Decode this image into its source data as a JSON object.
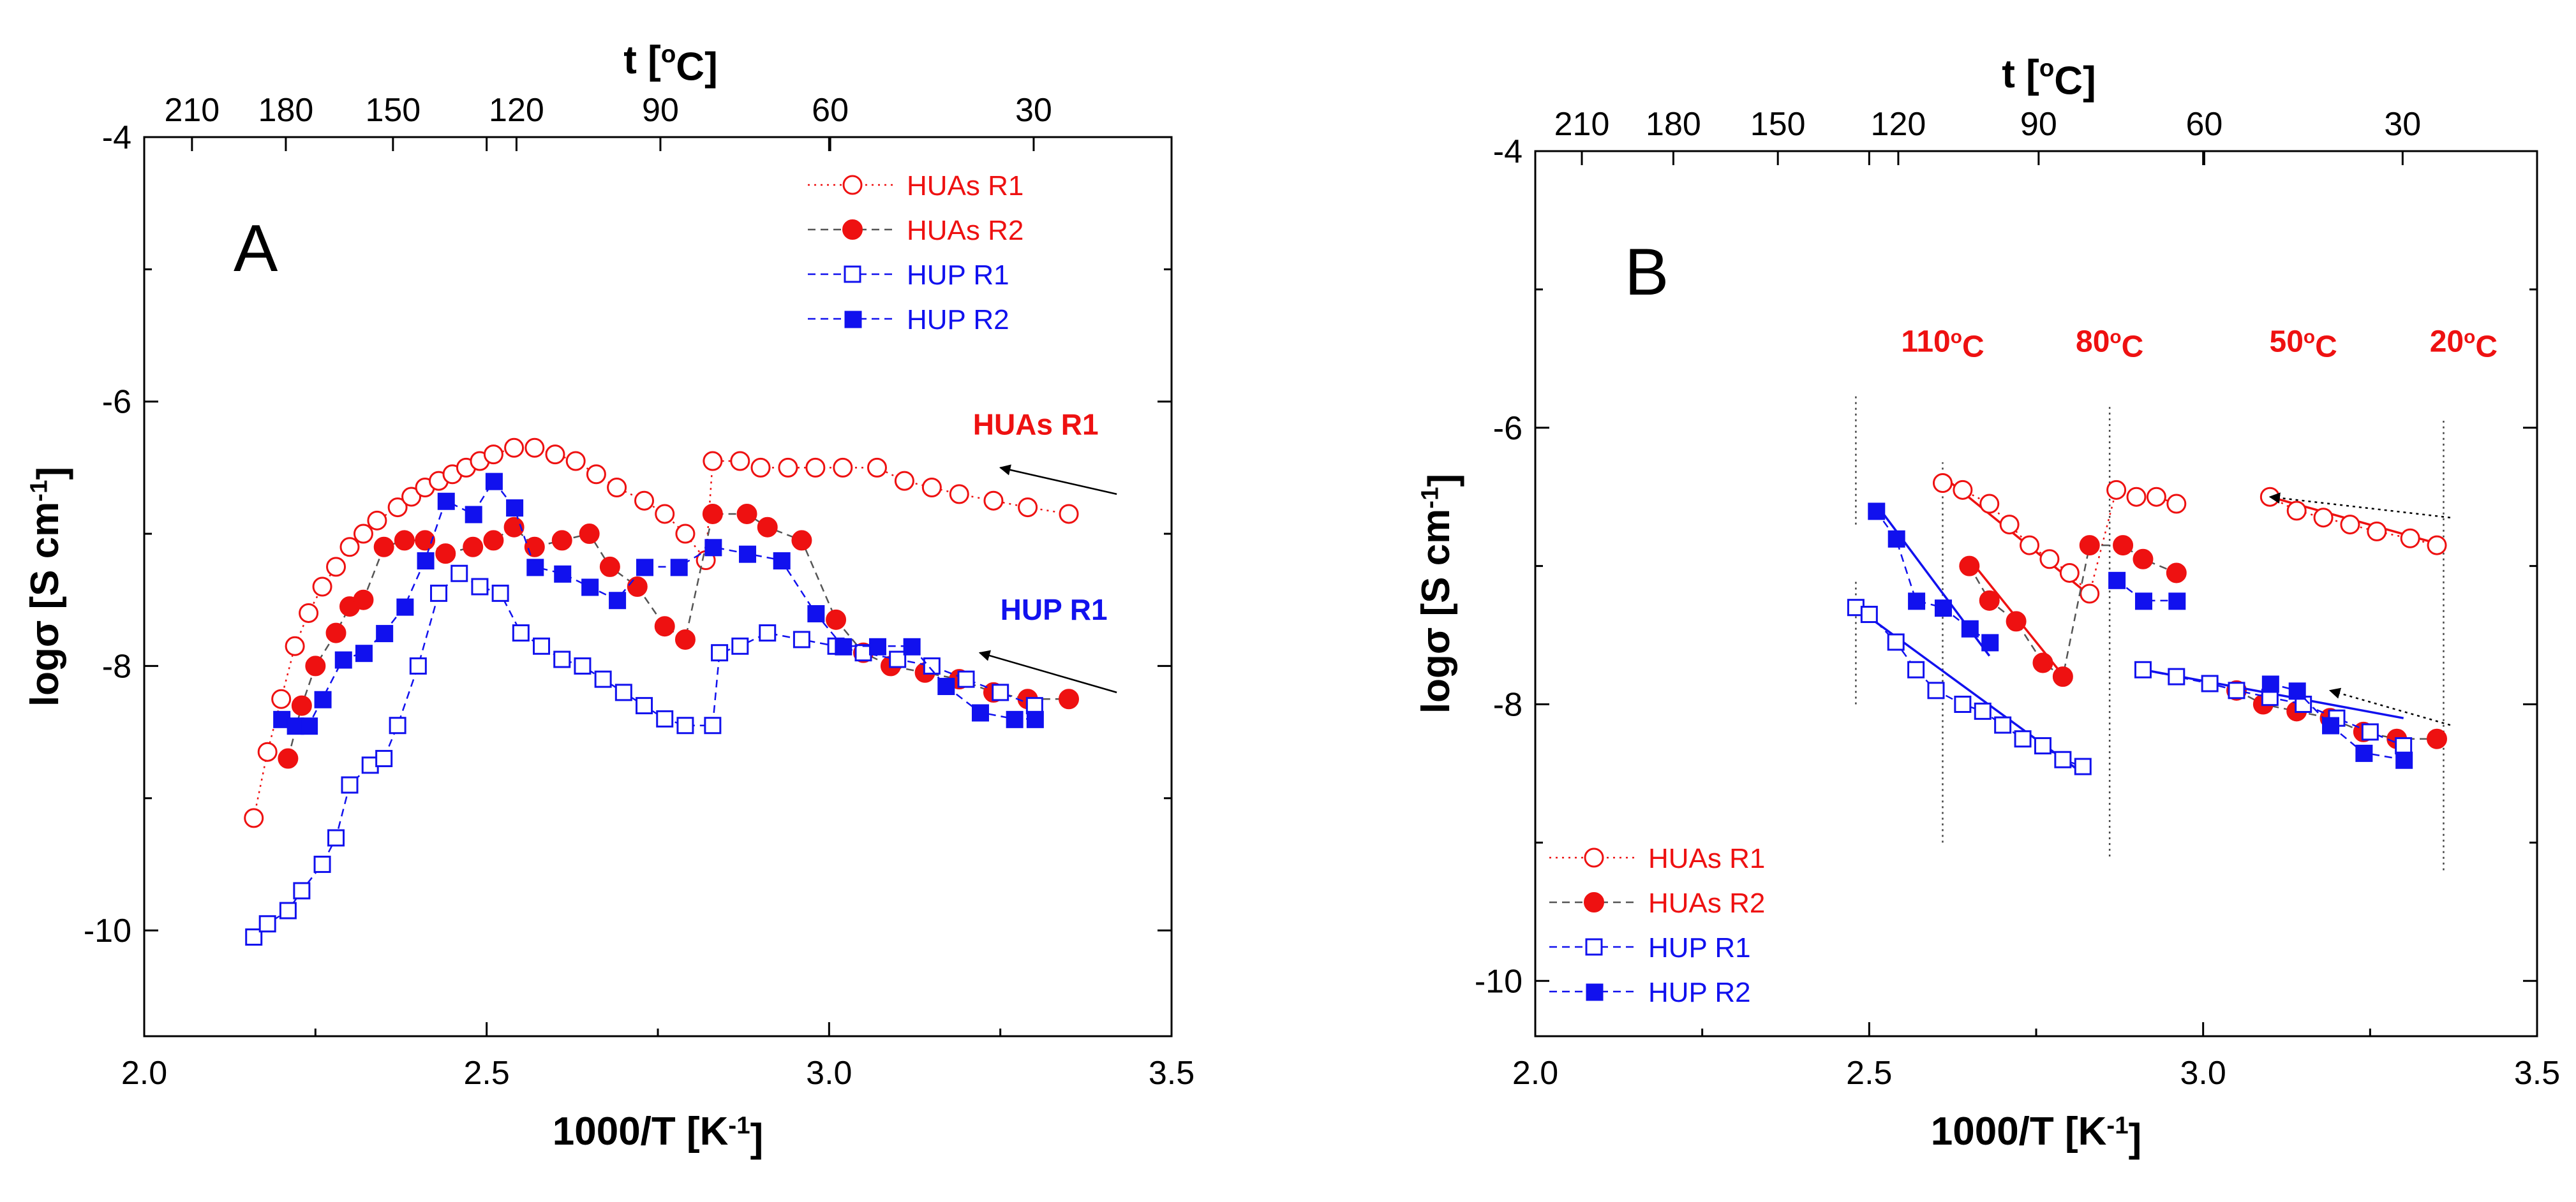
{
  "colors": {
    "red": "#ee1111",
    "blue": "#1111ee",
    "gray": "#555555",
    "black": "#000000"
  },
  "chart_data": [
    {
      "panel": "A",
      "type": "scatter",
      "xlabel": "1000/T [K",
      "xlabel_sup": "-1",
      "xlabel_end": "]",
      "ylabel": "logσ [S cm",
      "ylabel_sup": "-1",
      "ylabel_end": "]",
      "top_axis_label": "t [",
      "top_axis_label_sup": "o",
      "top_axis_label_end": "C]",
      "xlim": [
        2.0,
        3.5
      ],
      "ylim": [
        -10.8,
        -4.0
      ],
      "xticks": [
        2.0,
        2.5,
        3.0,
        3.5
      ],
      "xtick_labels": [
        "2.0",
        "2.5",
        "3.0",
        "3.5"
      ],
      "yticks": [
        -10,
        -8,
        -6,
        -4
      ],
      "ytick_labels": [
        "-10",
        "-8",
        "-6",
        "-4"
      ],
      "top_ticks": [
        210,
        180,
        150,
        120,
        90,
        60,
        30
      ],
      "top_tick_labels": [
        "210",
        "180",
        "150",
        "120",
        "90",
        "60",
        "30"
      ],
      "panel_letter": "A",
      "legend": {
        "position": "top-right",
        "entries": [
          "HUAs R1",
          "HUAs R2",
          "HUP R1",
          "HUP R2"
        ]
      },
      "series": [
        {
          "name": "HUAs R1",
          "color": "#ee1111",
          "marker": "open-circle",
          "line": "dotted",
          "x": [
            2.16,
            2.18,
            2.2,
            2.22,
            2.24,
            2.26,
            2.28,
            2.3,
            2.32,
            2.34,
            2.37,
            2.39,
            2.41,
            2.43,
            2.45,
            2.47,
            2.49,
            2.51,
            2.54,
            2.57,
            2.6,
            2.63,
            2.66,
            2.69,
            2.73,
            2.76,
            2.79,
            2.82,
            2.83,
            2.87,
            2.9,
            2.94,
            2.98,
            3.02,
            3.07,
            3.11,
            3.15,
            3.19,
            3.24,
            3.29,
            3.35
          ],
          "y": [
            -9.15,
            -8.65,
            -8.25,
            -7.85,
            -7.6,
            -7.4,
            -7.25,
            -7.1,
            -7.0,
            -6.9,
            -6.8,
            -6.72,
            -6.65,
            -6.6,
            -6.55,
            -6.5,
            -6.45,
            -6.4,
            -6.35,
            -6.35,
            -6.4,
            -6.45,
            -6.55,
            -6.65,
            -6.75,
            -6.85,
            -7.0,
            -7.2,
            -6.45,
            -6.45,
            -6.5,
            -6.5,
            -6.5,
            -6.5,
            -6.5,
            -6.6,
            -6.65,
            -6.7,
            -6.75,
            -6.8,
            -6.85
          ]
        },
        {
          "name": "HUAs R2",
          "color": "#ee1111",
          "marker": "filled-circle",
          "line": "dashed",
          "x": [
            2.21,
            2.23,
            2.25,
            2.28,
            2.3,
            2.32,
            2.35,
            2.38,
            2.41,
            2.44,
            2.48,
            2.51,
            2.54,
            2.57,
            2.61,
            2.65,
            2.68,
            2.72,
            2.76,
            2.79,
            2.83,
            2.88,
            2.91,
            2.96,
            3.01,
            3.05,
            3.09,
            3.14,
            3.19,
            3.24,
            3.29,
            3.35
          ],
          "y": [
            -8.7,
            -8.3,
            -8.0,
            -7.75,
            -7.55,
            -7.5,
            -7.1,
            -7.05,
            -7.05,
            -7.15,
            -7.1,
            -7.05,
            -6.95,
            -7.1,
            -7.05,
            -7.0,
            -7.25,
            -7.4,
            -7.7,
            -7.8,
            -6.85,
            -6.85,
            -6.95,
            -7.05,
            -7.65,
            -7.9,
            -8.0,
            -8.05,
            -8.1,
            -8.2,
            -8.25,
            -8.25
          ]
        },
        {
          "name": "HUP R1",
          "color": "#1111ee",
          "marker": "open-square",
          "line": "dashed",
          "x": [
            2.16,
            2.18,
            2.21,
            2.23,
            2.26,
            2.28,
            2.3,
            2.33,
            2.35,
            2.37,
            2.4,
            2.43,
            2.46,
            2.49,
            2.52,
            2.55,
            2.58,
            2.61,
            2.64,
            2.67,
            2.7,
            2.73,
            2.76,
            2.79,
            2.83,
            2.84,
            2.87,
            2.91,
            2.96,
            3.01,
            3.05,
            3.1,
            3.15,
            3.2,
            3.25,
            3.3
          ],
          "y": [
            -10.05,
            -9.95,
            -9.85,
            -9.7,
            -9.5,
            -9.3,
            -8.9,
            -8.75,
            -8.7,
            -8.45,
            -8.0,
            -7.45,
            -7.3,
            -7.4,
            -7.45,
            -7.75,
            -7.85,
            -7.95,
            -8.0,
            -8.1,
            -8.2,
            -8.3,
            -8.4,
            -8.45,
            -8.45,
            -7.9,
            -7.85,
            -7.75,
            -7.8,
            -7.85,
            -7.9,
            -7.95,
            -8.0,
            -8.1,
            -8.2,
            -8.3
          ]
        },
        {
          "name": "HUP R2",
          "color": "#1111ee",
          "marker": "filled-square",
          "line": "dashed",
          "x": [
            2.2,
            2.22,
            2.24,
            2.26,
            2.29,
            2.32,
            2.35,
            2.38,
            2.41,
            2.44,
            2.48,
            2.51,
            2.54,
            2.57,
            2.61,
            2.65,
            2.69,
            2.73,
            2.78,
            2.83,
            2.88,
            2.93,
            2.98,
            3.02,
            3.07,
            3.12,
            3.17,
            3.22,
            3.27,
            3.3
          ],
          "y": [
            -8.4,
            -8.45,
            -8.45,
            -8.25,
            -7.95,
            -7.9,
            -7.75,
            -7.55,
            -7.2,
            -6.75,
            -6.85,
            -6.6,
            -6.8,
            -7.25,
            -7.3,
            -7.4,
            -7.5,
            -7.25,
            -7.25,
            -7.1,
            -7.15,
            -7.2,
            -7.6,
            -7.85,
            -7.85,
            -7.85,
            -8.15,
            -8.35,
            -8.4,
            -8.4
          ]
        }
      ],
      "annotations": [
        {
          "text": "HUAs R1",
          "color": "#ee1111",
          "x": 3.21,
          "y": -6.25,
          "arrow_from": [
            3.42,
            -6.7
          ],
          "arrow_to": [
            3.25,
            -6.5
          ]
        },
        {
          "text": "HUP R1",
          "color": "#1111ee",
          "x": 3.25,
          "y": -7.65,
          "arrow_from": [
            3.42,
            -8.2
          ],
          "arrow_to": [
            3.22,
            -7.9
          ]
        }
      ]
    },
    {
      "panel": "B",
      "type": "scatter",
      "xlabel": "1000/T [K",
      "xlabel_sup": "-1",
      "xlabel_end": "]",
      "ylabel": "logσ [S cm",
      "ylabel_sup": "-1",
      "ylabel_end": "]",
      "top_axis_label": "t [",
      "top_axis_label_sup": "o",
      "top_axis_label_end": "C]",
      "xlim": [
        2.0,
        3.5
      ],
      "ylim": [
        -10.4,
        -4.0
      ],
      "xticks": [
        2.0,
        2.5,
        3.0,
        3.5
      ],
      "xtick_labels": [
        "2.0",
        "2.5",
        "3.0",
        "3.5"
      ],
      "yticks": [
        -10,
        -8,
        -6,
        -4
      ],
      "ytick_labels": [
        "-10",
        "-8",
        "-6",
        "-4"
      ],
      "top_ticks": [
        210,
        180,
        150,
        120,
        90,
        60,
        30
      ],
      "top_tick_labels": [
        "210",
        "180",
        "150",
        "120",
        "90",
        "60",
        "30"
      ],
      "panel_letter": "B",
      "legend": {
        "position": "bottom-left",
        "entries": [
          "HUAs R1",
          "HUAs R2",
          "HUP R1",
          "HUP R2"
        ]
      },
      "temperature_markers": [
        {
          "label": "110",
          "label_sup": "o",
          "label_end": "C",
          "x": 2.61,
          "y_range": [
            -9.0,
            -6.25
          ]
        },
        {
          "label": "80",
          "label_sup": "o",
          "label_end": "C",
          "x": 2.86,
          "y_range": [
            -9.1,
            -5.85
          ]
        },
        {
          "label": "50",
          "label_sup": "o",
          "label_end": "C",
          "x": 3.15,
          "y_range": null
        },
        {
          "label": "20",
          "label_sup": "o",
          "label_end": "C",
          "x": 3.36,
          "y_range": [
            -9.2,
            -5.95
          ]
        }
      ],
      "extra_dotted_lines": [
        {
          "x": 2.48,
          "y_range": [
            -8.0,
            -7.1
          ]
        },
        {
          "x": 2.48,
          "y_range": [
            -6.7,
            -5.75
          ]
        }
      ],
      "series": [
        {
          "name": "HUAs R1",
          "color": "#ee1111",
          "marker": "open-circle",
          "line": "dotted",
          "x": [
            2.61,
            2.64,
            2.68,
            2.71,
            2.74,
            2.77,
            2.8,
            2.83,
            2.87,
            2.9,
            2.93,
            2.96,
            3.1,
            3.14,
            3.18,
            3.22,
            3.26,
            3.31,
            3.35
          ],
          "y": [
            -6.4,
            -6.45,
            -6.55,
            -6.7,
            -6.85,
            -6.95,
            -7.05,
            -7.2,
            -6.45,
            -6.5,
            -6.5,
            -6.55,
            -6.5,
            -6.6,
            -6.65,
            -6.7,
            -6.75,
            -6.8,
            -6.85
          ],
          "fit_lines": [
            [
              [
                2.61,
                -6.35
              ],
              [
                2.84,
                -7.25
              ]
            ],
            [
              [
                3.1,
                -6.5
              ],
              [
                3.36,
                -6.85
              ]
            ]
          ]
        },
        {
          "name": "HUAs R2",
          "color": "#ee1111",
          "marker": "filled-circle",
          "line": "dashed",
          "x": [
            2.65,
            2.68,
            2.72,
            2.76,
            2.79,
            2.83,
            2.88,
            2.91,
            2.96,
            3.05,
            3.09,
            3.14,
            3.19,
            3.24,
            3.29,
            3.35
          ],
          "y": [
            -7.0,
            -7.25,
            -7.4,
            -7.7,
            -7.8,
            -6.85,
            -6.85,
            -6.95,
            -7.05,
            -7.9,
            -8.0,
            -8.05,
            -8.1,
            -8.2,
            -8.25,
            -8.25
          ],
          "fit_lines": [
            [
              [
                2.65,
                -6.95
              ],
              [
                2.8,
                -7.85
              ]
            ]
          ]
        },
        {
          "name": "HUP R1",
          "color": "#1111ee",
          "marker": "open-square",
          "line": "dashed",
          "x": [
            2.48,
            2.5,
            2.54,
            2.57,
            2.6,
            2.64,
            2.67,
            2.7,
            2.73,
            2.76,
            2.79,
            2.82,
            2.91,
            2.96,
            3.01,
            3.05,
            3.1,
            3.15,
            3.2,
            3.25,
            3.3
          ],
          "y": [
            -7.3,
            -7.35,
            -7.55,
            -7.75,
            -7.9,
            -8.0,
            -8.05,
            -8.15,
            -8.25,
            -8.3,
            -8.4,
            -8.45,
            -7.75,
            -7.8,
            -7.85,
            -7.9,
            -7.95,
            -8.0,
            -8.1,
            -8.2,
            -8.3
          ],
          "fit_lines": [
            [
              [
                2.48,
                -7.3
              ],
              [
                2.82,
                -8.5
              ]
            ],
            [
              [
                2.91,
                -7.75
              ],
              [
                3.3,
                -8.1
              ]
            ]
          ]
        },
        {
          "name": "HUP R2",
          "color": "#1111ee",
          "marker": "filled-square",
          "line": "dashed",
          "x": [
            2.51,
            2.54,
            2.57,
            2.61,
            2.65,
            2.68,
            2.87,
            2.91,
            2.96,
            3.1,
            3.14,
            3.19,
            3.24,
            3.3
          ],
          "y": [
            -6.6,
            -6.8,
            -7.25,
            -7.3,
            -7.45,
            -7.55,
            -7.1,
            -7.25,
            -7.25,
            -7.85,
            -7.9,
            -8.15,
            -8.35,
            -8.4
          ],
          "fit_lines": [
            [
              [
                2.51,
                -6.55
              ],
              [
                2.68,
                -7.65
              ]
            ]
          ]
        }
      ],
      "annotations": [
        {
          "text": "",
          "color": "#000000",
          "arrow_from": [
            3.37,
            -6.65
          ],
          "arrow_to": [
            3.1,
            -6.5
          ]
        },
        {
          "text": "",
          "color": "#000000",
          "arrow_from": [
            3.37,
            -8.15
          ],
          "arrow_to": [
            3.19,
            -7.9
          ]
        }
      ]
    }
  ]
}
